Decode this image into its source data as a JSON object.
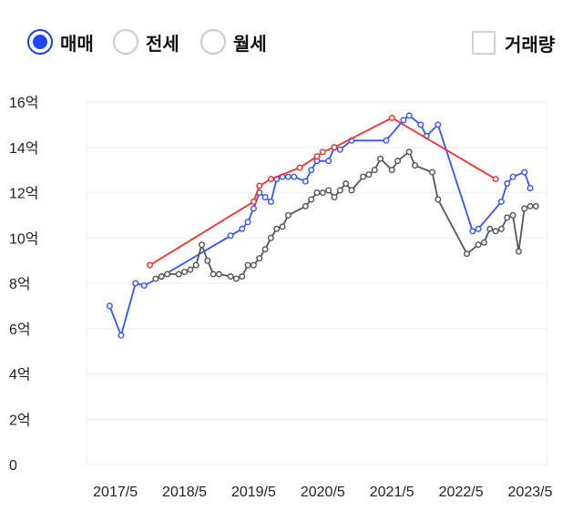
{
  "controls": {
    "tabs": [
      {
        "label": "매매",
        "selected": true
      },
      {
        "label": "전세",
        "selected": false
      },
      {
        "label": "월세",
        "selected": false
      }
    ],
    "volume_toggle": {
      "label": "거래량",
      "checked": false
    }
  },
  "colors": {
    "series_blue": "#3355ff",
    "series_red": "#ff2a2a",
    "series_gray": "#555555",
    "grid": "#eeeeee",
    "selected_radio": "#1f45ff"
  },
  "chart_data": {
    "type": "line",
    "xlabel": "",
    "ylabel": "",
    "x_ticks": [
      "2017/5",
      "2018/5",
      "2019/5",
      "2020/5",
      "2021/5",
      "2022/5",
      "2023/5"
    ],
    "y_ticks": [
      "0",
      "2억",
      "4억",
      "6억",
      "8억",
      "10억",
      "12억",
      "14억",
      "16억"
    ],
    "ylim": [
      0,
      16
    ],
    "x_unit": "months since 2017/1",
    "grid": true,
    "legend": "none",
    "series": [
      {
        "color": "#3355ff",
        "points": [
          [
            4,
            7.0
          ],
          [
            6,
            5.7
          ],
          [
            8.5,
            8.0
          ],
          [
            10,
            7.9
          ],
          [
            13,
            8.3
          ],
          [
            25,
            10.1
          ],
          [
            27,
            10.4
          ],
          [
            28,
            10.7
          ],
          [
            29,
            11.3
          ],
          [
            30,
            12.0
          ],
          [
            31,
            11.8
          ],
          [
            32,
            11.6
          ],
          [
            33,
            12.6
          ],
          [
            34,
            12.7
          ],
          [
            35,
            12.7
          ],
          [
            36,
            12.7
          ],
          [
            38,
            12.5
          ],
          [
            39,
            13.0
          ],
          [
            40,
            13.4
          ],
          [
            42,
            13.4
          ],
          [
            43,
            14.0
          ],
          [
            44,
            13.9
          ],
          [
            46,
            14.3
          ],
          [
            52,
            14.3
          ],
          [
            55,
            15.2
          ],
          [
            56,
            15.4
          ],
          [
            58,
            15.0
          ],
          [
            59,
            14.5
          ],
          [
            61,
            15.0
          ],
          [
            67,
            10.3
          ],
          [
            68,
            10.4
          ],
          [
            72,
            11.6
          ],
          [
            73,
            12.4
          ],
          [
            74,
            12.7
          ],
          [
            76,
            12.9
          ],
          [
            77,
            12.2
          ]
        ]
      },
      {
        "color": "#ff2a2a",
        "points": [
          [
            11,
            8.8
          ],
          [
            29,
            11.6
          ],
          [
            30,
            12.3
          ],
          [
            32,
            12.6
          ],
          [
            37,
            13.1
          ],
          [
            40,
            13.6
          ],
          [
            41,
            13.8
          ],
          [
            43,
            14.0
          ],
          [
            53,
            15.3
          ],
          [
            71,
            12.6
          ]
        ]
      },
      {
        "color": "#555555",
        "points": [
          [
            12,
            8.2
          ],
          [
            13,
            8.3
          ],
          [
            14,
            8.4
          ],
          [
            16,
            8.4
          ],
          [
            17,
            8.5
          ],
          [
            18,
            8.6
          ],
          [
            19,
            8.8
          ],
          [
            20,
            9.7
          ],
          [
            21,
            9.0
          ],
          [
            22,
            8.4
          ],
          [
            23,
            8.4
          ],
          [
            25,
            8.3
          ],
          [
            26,
            8.2
          ],
          [
            27,
            8.3
          ],
          [
            28,
            8.8
          ],
          [
            29,
            8.8
          ],
          [
            30,
            9.1
          ],
          [
            31,
            9.5
          ],
          [
            32,
            10.0
          ],
          [
            33,
            10.4
          ],
          [
            34,
            10.5
          ],
          [
            35,
            11.0
          ],
          [
            38,
            11.4
          ],
          [
            39,
            11.7
          ],
          [
            40,
            12.0
          ],
          [
            41,
            12.0
          ],
          [
            42,
            12.1
          ],
          [
            43,
            11.8
          ],
          [
            44,
            12.1
          ],
          [
            45,
            12.4
          ],
          [
            46,
            12.1
          ],
          [
            48,
            12.7
          ],
          [
            49,
            12.8
          ],
          [
            50,
            13.0
          ],
          [
            51,
            13.5
          ],
          [
            53,
            13.0
          ],
          [
            54,
            13.4
          ],
          [
            56,
            13.8
          ],
          [
            57,
            13.2
          ],
          [
            60,
            12.9
          ],
          [
            61,
            11.7
          ],
          [
            66,
            9.3
          ],
          [
            68,
            9.7
          ],
          [
            69,
            9.8
          ],
          [
            70,
            10.4
          ],
          [
            71,
            10.3
          ],
          [
            72,
            10.4
          ],
          [
            73,
            10.9
          ],
          [
            74,
            11.0
          ],
          [
            75,
            9.4
          ],
          [
            76,
            11.3
          ],
          [
            77,
            11.4
          ],
          [
            78,
            11.4
          ]
        ]
      }
    ]
  }
}
